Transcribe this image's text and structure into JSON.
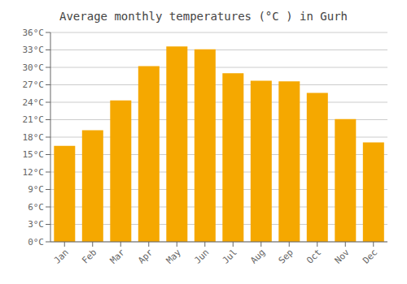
{
  "chart_data": {
    "type": "bar",
    "title": "Average monthly temperatures (°C ) in Gurh",
    "categories": [
      "Jan",
      "Feb",
      "Mar",
      "Apr",
      "May",
      "Jun",
      "Jul",
      "Aug",
      "Sep",
      "Oct",
      "Nov",
      "Dec"
    ],
    "values": [
      16.5,
      19.2,
      24.3,
      30.2,
      33.6,
      33.1,
      29.0,
      27.7,
      27.6,
      25.6,
      21.1,
      17.1
    ],
    "color": "#F5A800",
    "ylim": [
      0,
      36
    ],
    "yticks": [
      {
        "value": 0,
        "label": "0°C"
      },
      {
        "value": 3,
        "label": "3°C"
      },
      {
        "value": 6,
        "label": "6°C"
      },
      {
        "value": 9,
        "label": "9°C"
      },
      {
        "value": 12,
        "label": "12°C"
      },
      {
        "value": 15,
        "label": "15°C"
      },
      {
        "value": 18,
        "label": "18°C"
      },
      {
        "value": 21,
        "label": "21°C"
      },
      {
        "value": 24,
        "label": "24°C"
      },
      {
        "value": 27,
        "label": "27°C"
      },
      {
        "value": 30,
        "label": "30°C"
      },
      {
        "value": 33,
        "label": "33°C"
      },
      {
        "value": 36,
        "label": "36°C"
      }
    ],
    "grid": true
  }
}
